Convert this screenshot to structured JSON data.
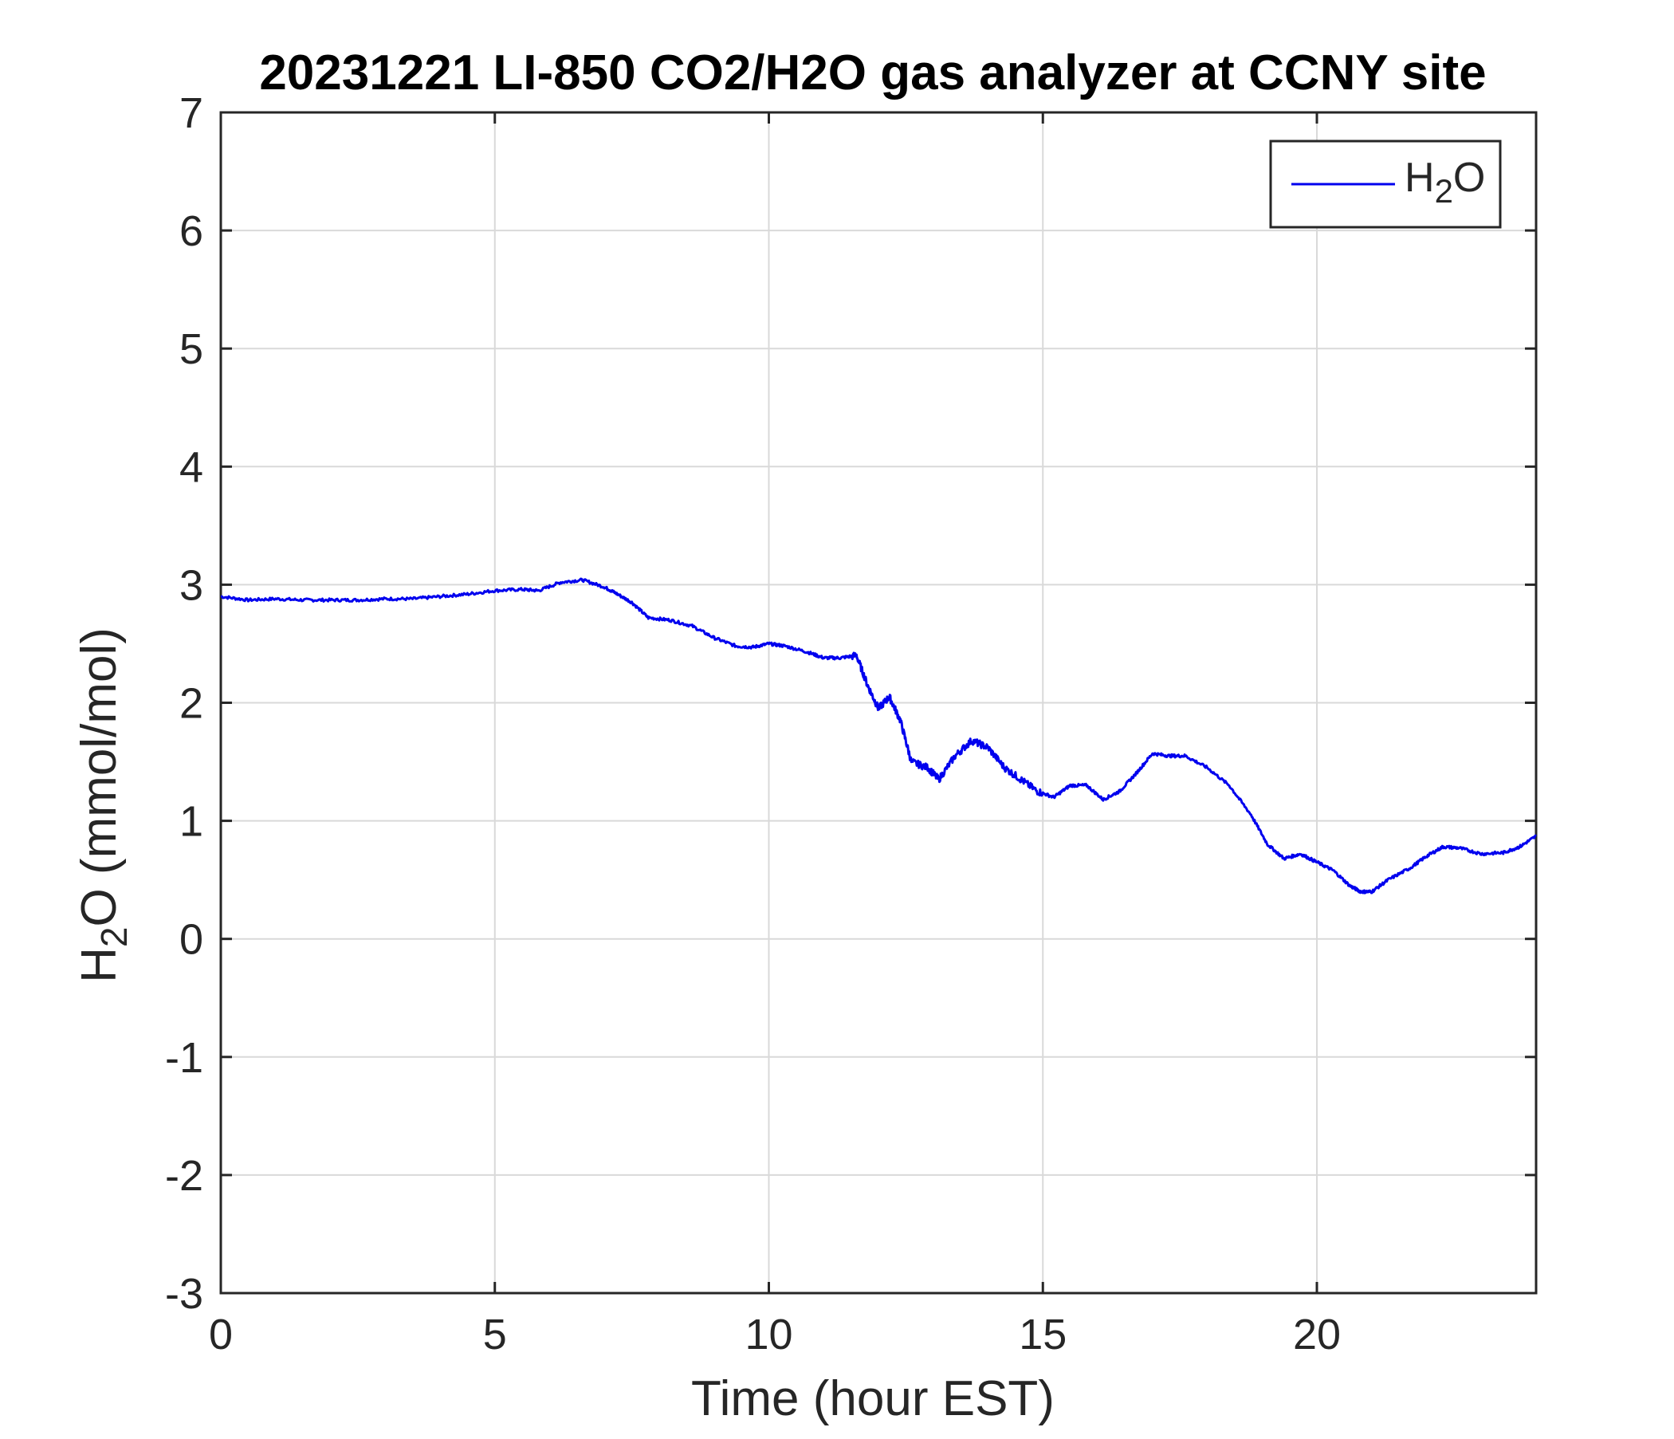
{
  "chart_data": {
    "type": "line",
    "title": "20231221 LI-850 CO2/H2O gas analyzer at CCNY site",
    "xlabel": "Time (hour EST)",
    "ylabel": {
      "prefix": "H",
      "sub": "2",
      "suffix": "O (mmol/mol)"
    },
    "xlim": [
      0,
      24
    ],
    "ylim": [
      -3,
      7
    ],
    "xticks": [
      0,
      5,
      10,
      15,
      20
    ],
    "yticks": [
      -3,
      -2,
      -1,
      0,
      1,
      2,
      3,
      4,
      5,
      6,
      7
    ],
    "grid": true,
    "legend_position": "top-right",
    "series": [
      {
        "name": {
          "prefix": "H",
          "sub": "2",
          "suffix": "O"
        },
        "color": "#0000ee",
        "x": [
          0,
          0.5,
          1,
          1.5,
          2,
          2.5,
          3,
          3.5,
          4,
          4.5,
          5,
          5.5,
          5.8,
          6.2,
          6.6,
          7,
          7.2,
          7.5,
          7.8,
          8.2,
          8.6,
          9,
          9.4,
          9.7,
          10,
          10.3,
          10.7,
          11,
          11.3,
          11.6,
          11.8,
          12.0,
          12.2,
          12.4,
          12.6,
          12.9,
          13.1,
          13.4,
          13.7,
          14.0,
          14.3,
          14.6,
          14.9,
          15.2,
          15.5,
          15.8,
          16.1,
          16.4,
          16.7,
          17.0,
          17.3,
          17.6,
          18.0,
          18.4,
          18.8,
          19.1,
          19.4,
          19.7,
          20.0,
          20.3,
          20.6,
          20.8,
          21.0,
          21.3,
          21.7,
          22.0,
          22.3,
          22.6,
          23.0,
          23.4,
          23.7,
          24.0
        ],
        "values": [
          2.9,
          2.87,
          2.88,
          2.87,
          2.87,
          2.87,
          2.88,
          2.88,
          2.9,
          2.92,
          2.95,
          2.96,
          2.95,
          3.02,
          3.04,
          2.98,
          2.93,
          2.85,
          2.72,
          2.7,
          2.65,
          2.55,
          2.48,
          2.47,
          2.5,
          2.48,
          2.43,
          2.38,
          2.38,
          2.4,
          2.15,
          1.95,
          2.05,
          1.85,
          1.5,
          1.45,
          1.35,
          1.55,
          1.68,
          1.62,
          1.45,
          1.35,
          1.25,
          1.2,
          1.3,
          1.3,
          1.18,
          1.25,
          1.4,
          1.57,
          1.55,
          1.55,
          1.45,
          1.3,
          1.05,
          0.8,
          0.68,
          0.72,
          0.65,
          0.58,
          0.45,
          0.4,
          0.4,
          0.5,
          0.6,
          0.7,
          0.78,
          0.77,
          0.72,
          0.73,
          0.78,
          0.87
        ]
      }
    ]
  }
}
